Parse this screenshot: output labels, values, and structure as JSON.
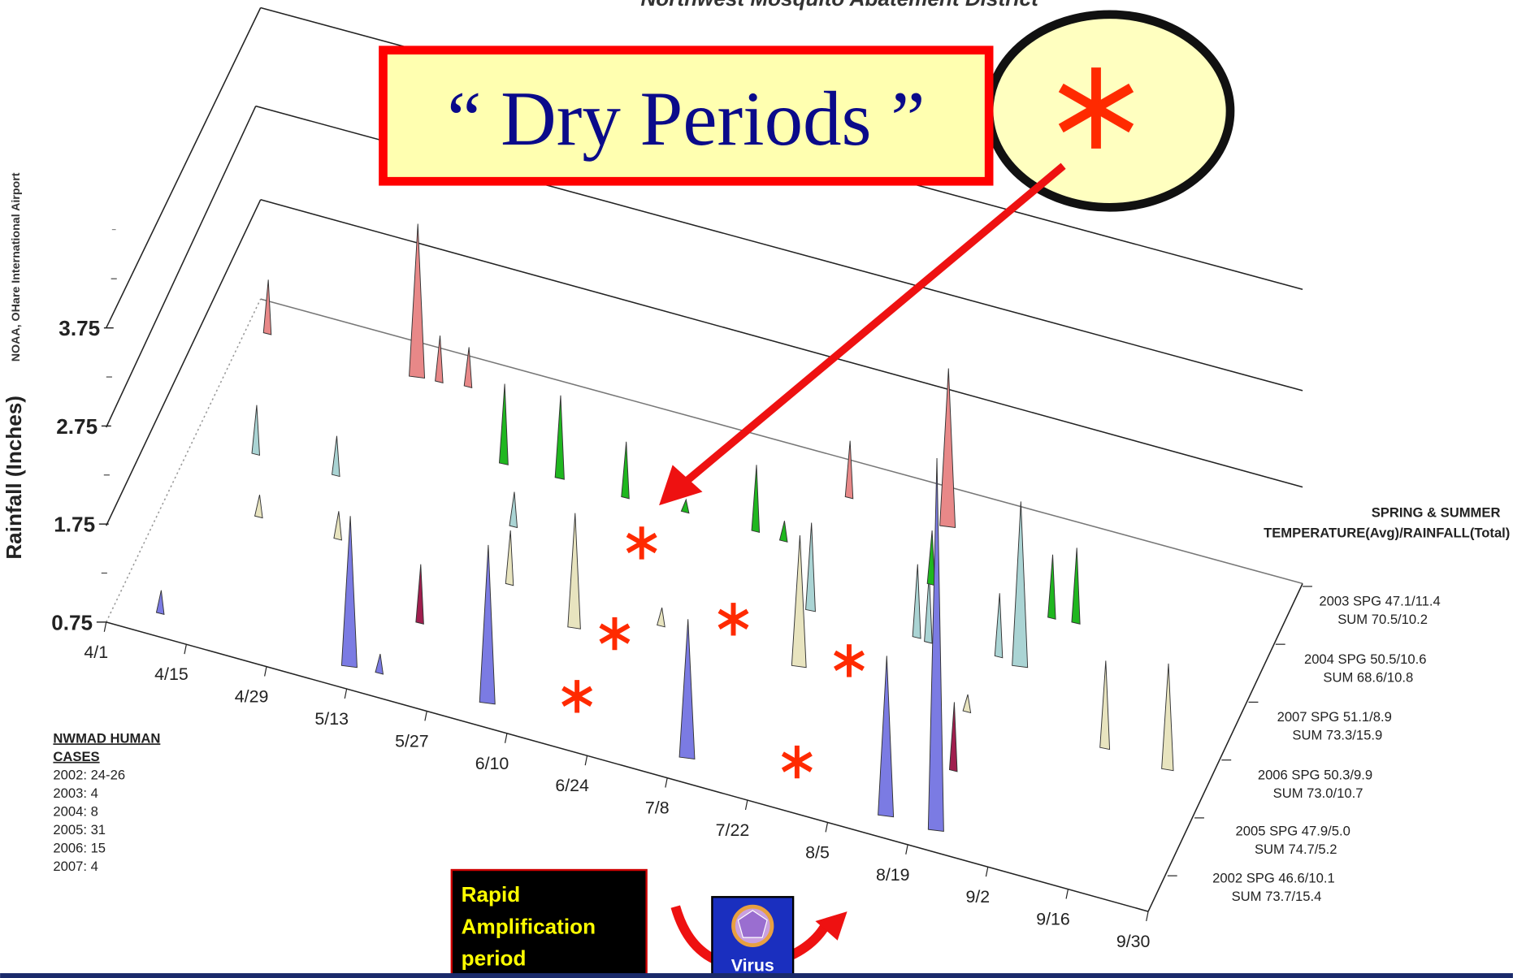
{
  "header": {
    "title": "Northwest Mosquito Abatement District"
  },
  "axis": {
    "y_label": "Rainfall (Inches)",
    "y_note": "NOAA,  OHare International Airport",
    "yticks": [
      0.75,
      1.75,
      2.75,
      3.75
    ],
    "dates": [
      "4/1",
      "4/15",
      "4/29",
      "5/13",
      "5/27",
      "6/10",
      "6/24",
      "7/8",
      "7/22",
      "8/5",
      "8/19",
      "9/2",
      "9/16",
      "9/30"
    ]
  },
  "legend": {
    "title": [
      "SPRING & SUMMER",
      "TEMPERATURE(Avg)/RAINFALL(Total)"
    ],
    "entries": [
      [
        "2003 SPG 47.1/11.4",
        "SUM 70.5/10.2"
      ],
      [
        "2004 SPG 50.5/10.6",
        "SUM 68.6/10.8"
      ],
      [
        "2007 SPG 51.1/8.9",
        "SUM 73.3/15.9"
      ],
      [
        "2006 SPG 50.3/9.9",
        "SUM 73.0/10.7"
      ],
      [
        "2005 SPG 47.9/5.0",
        "SUM 74.7/5.2"
      ],
      [
        "2002 SPG 46.6/10.1",
        "SUM 73.7/15.4"
      ]
    ]
  },
  "cases": {
    "title": [
      "NWMAD HUMAN",
      "CASES"
    ],
    "lines": [
      "2002: 24-26",
      "2003: 4",
      "2004: 8",
      "2005: 31",
      "2006: 15",
      "2007: 4"
    ]
  },
  "callout": {
    "text": "“ Dry Periods ”"
  },
  "amplification": {
    "lines": [
      "Rapid",
      "Amplification",
      "period"
    ]
  },
  "virus": {
    "label": "Virus"
  }
}
